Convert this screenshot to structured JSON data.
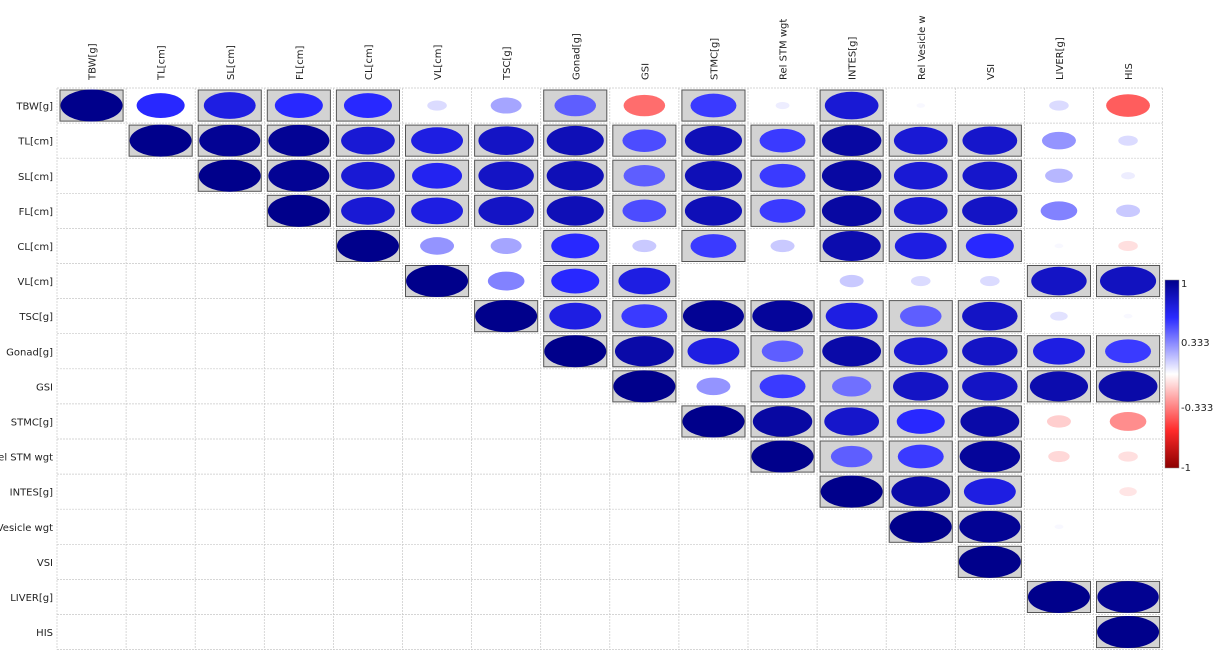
{
  "chart_data": {
    "type": "heatmap",
    "title": "",
    "xlabel": "",
    "ylabel": "",
    "variables": [
      "TBW[g]",
      "TL[cm]",
      "SL[cm]",
      "FL[cm]",
      "CL[cm]",
      "VL[cm]",
      "TSC[g]",
      "Gonad[g]",
      "GSI",
      "STMC[g]",
      "Rel STM wgt",
      "INTES[g]",
      "Rel Vesicle wgt",
      "VSI",
      "LIVER[g]",
      "HIS"
    ],
    "x_tick_labels": [
      "TBW[g]",
      "TL[cm]",
      "SL[cm]",
      "FL[cm]",
      "CL[cm]",
      "VL[cm]",
      "TSC[g]",
      "Gonad[g]",
      "GSI",
      "STMC[g]",
      "Rel STM wgt",
      "INTES[g]",
      "Rel Vesicle w",
      "VSI",
      "LIVER[g]",
      "HIS"
    ],
    "y_tick_labels": [
      "TBW[g]",
      "TL[cm]",
      "SL[cm]",
      "FL[cm]",
      "CL[cm]",
      "VL[cm]",
      "TSC[g]",
      "Gonad[g]",
      "GSI",
      "STMC[g]",
      "el STM wgt",
      "INTES[g]",
      "Vesicle wgt",
      "VSI",
      "LIVER[g]",
      "HIS"
    ],
    "matrix": [
      [
        1,
        0.6,
        0.7,
        0.6,
        0.6,
        0.1,
        0.25,
        0.45,
        -0.45,
        0.55,
        0.05,
        0.75,
        0.02,
        0.0,
        0.1,
        -0.5
      ],
      [
        null,
        1,
        0.97,
        0.97,
        0.75,
        0.7,
        0.8,
        0.85,
        0.5,
        0.85,
        0.55,
        0.92,
        0.75,
        0.78,
        0.3,
        0.1
      ],
      [
        null,
        null,
        1,
        0.97,
        0.75,
        0.65,
        0.8,
        0.85,
        0.45,
        0.85,
        0.55,
        0.92,
        0.75,
        0.78,
        0.2,
        0.05
      ],
      [
        null,
        null,
        null,
        1,
        0.75,
        0.7,
        0.8,
        0.85,
        0.5,
        0.85,
        0.55,
        0.92,
        0.75,
        0.8,
        0.35,
        0.15
      ],
      [
        null,
        null,
        null,
        null,
        1,
        0.3,
        0.25,
        0.6,
        0.15,
        0.55,
        0.15,
        0.88,
        0.7,
        0.6,
        0.02,
        -0.1
      ],
      [
        null,
        null,
        null,
        null,
        null,
        1,
        0.35,
        0.6,
        0.7,
        0.0,
        0.0,
        0.15,
        0.1,
        0.1,
        0.8,
        0.82
      ],
      [
        null,
        null,
        null,
        null,
        null,
        null,
        1,
        0.7,
        0.55,
        0.97,
        0.95,
        0.7,
        0.45,
        0.8,
        0.08,
        0.02
      ],
      [
        null,
        null,
        null,
        null,
        null,
        null,
        null,
        1,
        0.9,
        0.7,
        0.45,
        0.9,
        0.75,
        0.8,
        0.7,
        0.55
      ],
      [
        null,
        null,
        null,
        null,
        null,
        null,
        null,
        null,
        1,
        0.3,
        0.55,
        0.4,
        0.8,
        0.8,
        0.88,
        0.9
      ],
      [
        null,
        null,
        null,
        null,
        null,
        null,
        null,
        null,
        null,
        1,
        0.92,
        0.78,
        0.6,
        0.9,
        -0.15,
        -0.35
      ],
      [
        null,
        null,
        null,
        null,
        null,
        null,
        null,
        null,
        null,
        null,
        1,
        0.45,
        0.55,
        0.95,
        -0.12,
        -0.1
      ],
      [
        null,
        null,
        null,
        null,
        null,
        null,
        null,
        null,
        null,
        null,
        null,
        1,
        0.9,
        0.7,
        0.0,
        -0.08
      ],
      [
        null,
        null,
        null,
        null,
        null,
        null,
        null,
        null,
        null,
        null,
        null,
        null,
        1,
        0.97,
        0.02,
        0.0
      ],
      [
        null,
        null,
        null,
        null,
        null,
        null,
        null,
        null,
        null,
        null,
        null,
        null,
        null,
        1,
        0.0,
        0.0
      ],
      [
        null,
        null,
        null,
        null,
        null,
        null,
        null,
        null,
        null,
        null,
        null,
        null,
        null,
        null,
        1,
        0.98
      ],
      [
        null,
        null,
        null,
        null,
        null,
        null,
        null,
        null,
        null,
        null,
        null,
        null,
        null,
        null,
        null,
        1
      ]
    ],
    "significant": [
      [
        1,
        0,
        1,
        1,
        1,
        0,
        0,
        1,
        0,
        1,
        0,
        1,
        0,
        0,
        0,
        0
      ],
      [
        0,
        1,
        1,
        1,
        1,
        1,
        1,
        1,
        1,
        1,
        1,
        1,
        1,
        1,
        0,
        0
      ],
      [
        0,
        0,
        1,
        1,
        1,
        1,
        1,
        1,
        1,
        1,
        1,
        1,
        1,
        1,
        0,
        0
      ],
      [
        0,
        0,
        0,
        1,
        1,
        1,
        1,
        1,
        1,
        1,
        1,
        1,
        1,
        1,
        0,
        0
      ],
      [
        0,
        0,
        0,
        0,
        1,
        0,
        0,
        1,
        0,
        1,
        0,
        1,
        1,
        1,
        0,
        0
      ],
      [
        0,
        0,
        0,
        0,
        0,
        1,
        0,
        1,
        1,
        0,
        0,
        0,
        0,
        0,
        1,
        1
      ],
      [
        0,
        0,
        0,
        0,
        0,
        0,
        1,
        1,
        1,
        1,
        1,
        1,
        1,
        1,
        0,
        0
      ],
      [
        0,
        0,
        0,
        0,
        0,
        0,
        0,
        1,
        1,
        1,
        1,
        1,
        1,
        1,
        1,
        1
      ],
      [
        0,
        0,
        0,
        0,
        0,
        0,
        0,
        0,
        1,
        0,
        1,
        1,
        1,
        1,
        1,
        1
      ],
      [
        0,
        0,
        0,
        0,
        0,
        0,
        0,
        0,
        0,
        1,
        1,
        1,
        1,
        1,
        0,
        0
      ],
      [
        0,
        0,
        0,
        0,
        0,
        0,
        0,
        0,
        0,
        0,
        1,
        1,
        1,
        1,
        0,
        0
      ],
      [
        0,
        0,
        0,
        0,
        0,
        0,
        0,
        0,
        0,
        0,
        0,
        1,
        1,
        1,
        0,
        0
      ],
      [
        0,
        0,
        0,
        0,
        0,
        0,
        0,
        0,
        0,
        0,
        0,
        0,
        1,
        1,
        0,
        0
      ],
      [
        0,
        0,
        0,
        0,
        0,
        0,
        0,
        0,
        0,
        0,
        0,
        0,
        0,
        1,
        0,
        0
      ],
      [
        0,
        0,
        0,
        0,
        0,
        0,
        0,
        0,
        0,
        0,
        0,
        0,
        0,
        0,
        1,
        1
      ],
      [
        0,
        0,
        0,
        0,
        0,
        0,
        0,
        0,
        0,
        0,
        0,
        0,
        0,
        0,
        0,
        1
      ]
    ],
    "color_scale": {
      "min": -1,
      "max": 1,
      "tick_labels": [
        "1",
        "0.333",
        "-0.333",
        "-1"
      ],
      "high_color": "#00008B",
      "mid_color": "#FFFFFF",
      "low_color": "#8B0000"
    },
    "significant_fill": "#d3d3d3",
    "grid": true
  }
}
